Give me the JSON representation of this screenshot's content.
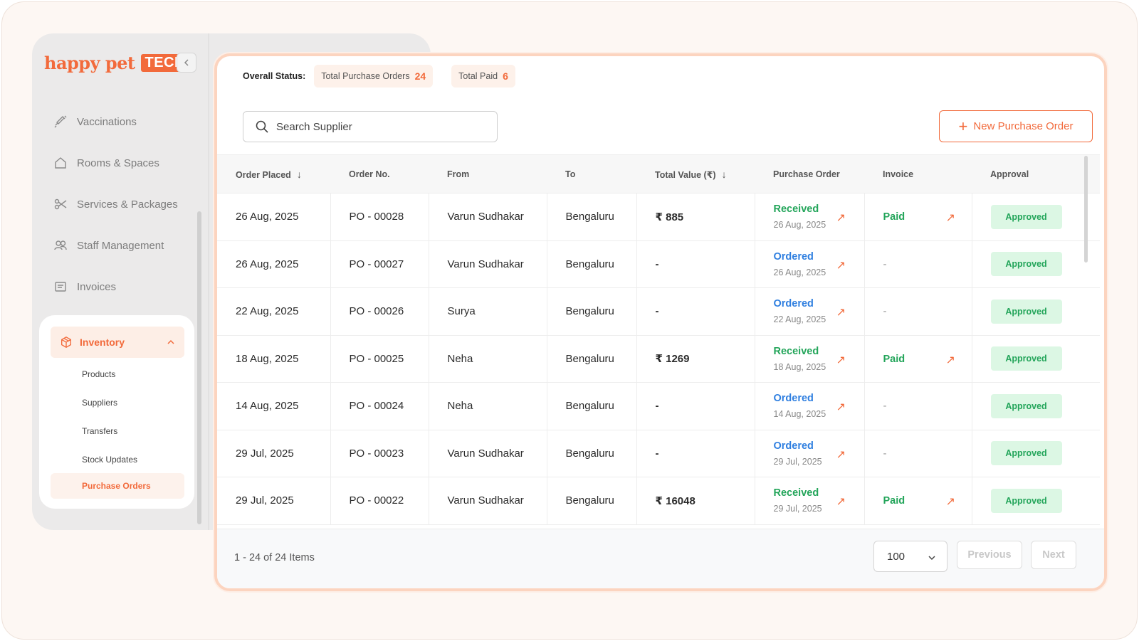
{
  "sidebar": {
    "logo_text": "happy pet",
    "logo_badge": "TECH",
    "items": [
      {
        "label": "Vaccinations",
        "icon": "syringe-icon"
      },
      {
        "label": "Rooms & Spaces",
        "icon": "home-icon"
      },
      {
        "label": "Services & Packages",
        "icon": "scissors-icon"
      },
      {
        "label": "Staff Management",
        "icon": "users-icon"
      },
      {
        "label": "Invoices",
        "icon": "receipt-icon"
      }
    ],
    "inventory": {
      "label": "Inventory",
      "icon": "box-icon",
      "sub_items": [
        "Products",
        "Suppliers",
        "Transfers",
        "Stock Updates"
      ],
      "active_item": "Purchase Orders"
    }
  },
  "status": {
    "label": "Overall Status:",
    "total_po_label": "Total Purchase Orders",
    "total_po_count": "24",
    "total_paid_label": "Total Paid",
    "total_paid_count": "6"
  },
  "search": {
    "placeholder": "Search Supplier"
  },
  "new_po_label": "New Purchase Order",
  "table": {
    "headers": {
      "order_placed": "Order Placed",
      "order_no": "Order No.",
      "from": "From",
      "to": "To",
      "total_value": "Total Value (₹)",
      "purchase_order": "Purchase Order",
      "invoice": "Invoice",
      "approval": "Approval"
    },
    "rows": [
      {
        "date": "26 Aug, 2025",
        "no": "PO - 00028",
        "from": "Varun Sudhakar",
        "to": "Bengaluru",
        "value": "₹ 885",
        "po_status": "Received",
        "po_date": "26 Aug, 2025",
        "invoice": "Paid",
        "approval": "Approved"
      },
      {
        "date": "26 Aug, 2025",
        "no": "PO - 00027",
        "from": "Varun Sudhakar",
        "to": "Bengaluru",
        "value": "-",
        "po_status": "Ordered",
        "po_date": "26 Aug, 2025",
        "invoice": "-",
        "approval": "Approved"
      },
      {
        "date": "22 Aug, 2025",
        "no": "PO - 00026",
        "from": "Surya",
        "to": "Bengaluru",
        "value": "-",
        "po_status": "Ordered",
        "po_date": "22 Aug, 2025",
        "invoice": "-",
        "approval": "Approved"
      },
      {
        "date": "18 Aug, 2025",
        "no": "PO - 00025",
        "from": "Neha",
        "to": "Bengaluru",
        "value": "₹ 1269",
        "po_status": "Received",
        "po_date": "18 Aug, 2025",
        "invoice": "Paid",
        "approval": "Approved"
      },
      {
        "date": "14 Aug, 2025",
        "no": "PO - 00024",
        "from": "Neha",
        "to": "Bengaluru",
        "value": "-",
        "po_status": "Ordered",
        "po_date": "14 Aug, 2025",
        "invoice": "-",
        "approval": "Approved"
      },
      {
        "date": "29 Jul, 2025",
        "no": "PO - 00023",
        "from": "Varun Sudhakar",
        "to": "Bengaluru",
        "value": "-",
        "po_status": "Ordered",
        "po_date": "29 Jul, 2025",
        "invoice": "-",
        "approval": "Approved"
      },
      {
        "date": "29 Jul, 2025",
        "no": "PO - 00022",
        "from": "Varun Sudhakar",
        "to": "Bengaluru",
        "value": "₹ 16048",
        "po_status": "Received",
        "po_date": "29 Jul, 2025",
        "invoice": "Paid",
        "approval": "Approved"
      }
    ]
  },
  "footer": {
    "items_info": "1 - 24 of 24 Items",
    "page_size": "100",
    "previous_label": "Previous",
    "next_label": "Next"
  },
  "colors": {
    "accent": "#f26a3b",
    "received": "#23a55a",
    "ordered": "#2f7fe0",
    "approved_bg": "#dcf7e4"
  }
}
